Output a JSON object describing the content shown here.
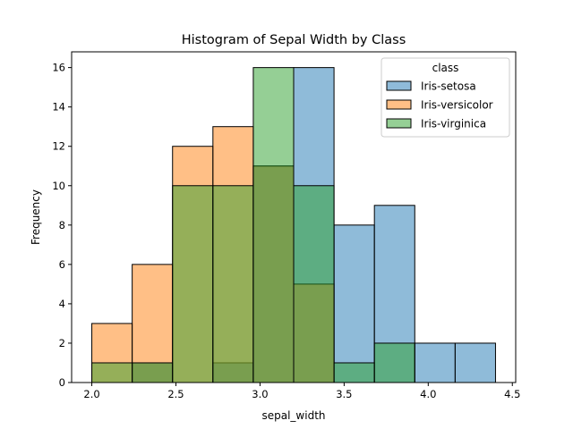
{
  "chart_data": {
    "type": "histogram",
    "title": "Histogram of Sepal Width by Class",
    "xlabel": "sepal_width",
    "ylabel": "Frequency",
    "xlim": [
      1.88,
      4.52
    ],
    "ylim": [
      0,
      16.8
    ],
    "x_ticks": [
      2.0,
      2.5,
      3.0,
      3.5,
      4.0,
      4.5
    ],
    "x_tick_labels": [
      "2.0",
      "2.5",
      "3.0",
      "3.5",
      "4.0",
      "4.5"
    ],
    "y_ticks": [
      0,
      2,
      4,
      6,
      8,
      10,
      12,
      14,
      16
    ],
    "y_tick_labels": [
      "0",
      "2",
      "4",
      "6",
      "8",
      "10",
      "12",
      "14",
      "16"
    ],
    "bin_edges": [
      2.0,
      2.24,
      2.48,
      2.72,
      2.96,
      3.2,
      3.44,
      3.68,
      3.92,
      4.16,
      4.4
    ],
    "legend": {
      "title": "class",
      "position": "top-right"
    },
    "grid": false,
    "series": [
      {
        "name": "Iris-setosa",
        "color": "#1f77b4",
        "values": [
          0,
          1,
          0,
          1,
          11,
          16,
          8,
          9,
          2,
          2
        ]
      },
      {
        "name": "Iris-versicolor",
        "color": "#ff7f0e",
        "values": [
          3,
          6,
          12,
          13,
          11,
          5,
          0,
          0,
          0,
          0
        ]
      },
      {
        "name": "Iris-virginica",
        "color": "#2ca02c",
        "values": [
          1,
          1,
          10,
          10,
          16,
          10,
          1,
          2,
          0,
          0
        ]
      }
    ]
  }
}
